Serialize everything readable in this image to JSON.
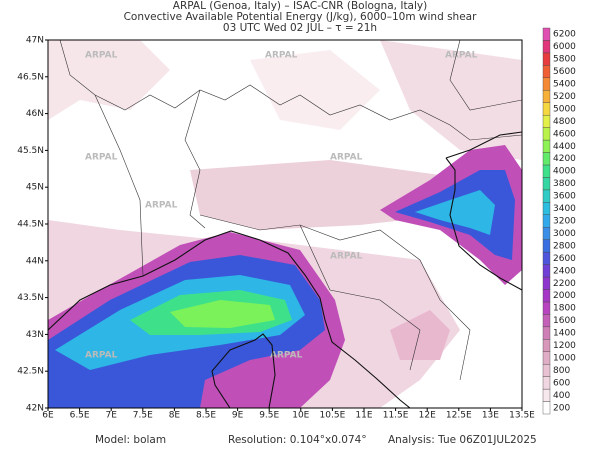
{
  "header": {
    "lines": [
      "ARPAL (Genoa, Italy)  –  ISAC-CNR (Bologna, Italy)",
      "Convective Available Potential Energy (J/kg), 6000–10m wind shear",
      "03 UTC Wed 02 JUL  –  τ = 21h"
    ]
  },
  "map": {
    "watermark": "ARPAL",
    "lon_labels": [
      "6E",
      "6.5E",
      "7E",
      "7.5E",
      "8E",
      "8.5E",
      "9E",
      "9.5E",
      "10E",
      "10.5E",
      "11E",
      "11.5E",
      "12E",
      "12.5E",
      "13E",
      "13.5E"
    ],
    "lat_labels": [
      "42N",
      "42.5N",
      "43N",
      "43.5N",
      "44N",
      "44.5N",
      "45N",
      "45.5N",
      "46N",
      "46.5N",
      "47N"
    ]
  },
  "colorbar": {
    "labels": [
      200,
      400,
      600,
      800,
      1000,
      1200,
      1400,
      1600,
      1800,
      2000,
      2200,
      2400,
      2600,
      2800,
      3000,
      3200,
      3400,
      3600,
      3800,
      4000,
      4200,
      4400,
      4600,
      4800,
      5000,
      5200,
      5400,
      5600,
      5800,
      6000,
      6200
    ]
  },
  "footer": {
    "model": "Model:  bolam",
    "resolution": "Resolution:  0.104°x0.074°",
    "analysis": "Analysis:  Tue 06Z01JUL2025"
  }
}
